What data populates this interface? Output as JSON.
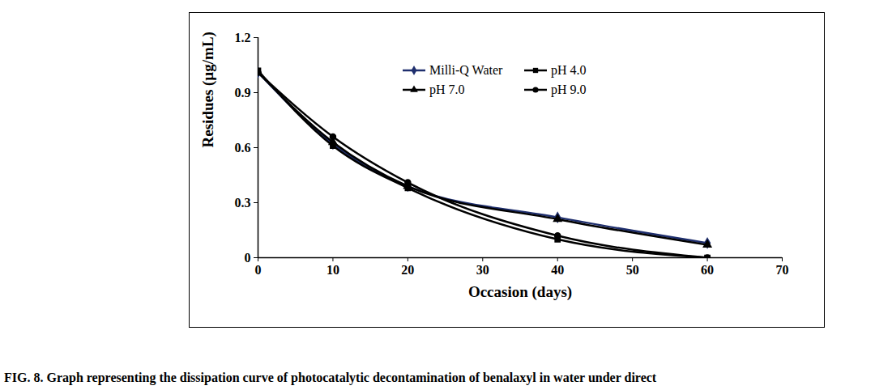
{
  "chart_data": {
    "type": "line",
    "title": "FIG. 8. Graph representing the dissipation curve of photocatalytic decontamination of benalaxyl in water under direct",
    "x_label": "Occasion (days)",
    "y_label": "Residues (µg/mL)",
    "x": [
      0,
      10,
      20,
      40,
      60
    ],
    "series": [
      {
        "name": "Milli-Q Water",
        "color": "#1f2f6e",
        "marker": "diamond",
        "values": [
          1.01,
          0.62,
          0.39,
          0.22,
          0.08
        ]
      },
      {
        "name": "pH 4.0",
        "color": "#000000",
        "marker": "square",
        "values": [
          1.02,
          0.61,
          0.38,
          0.1,
          0.0
        ]
      },
      {
        "name": "pH 7.0",
        "color": "#000000",
        "marker": "triangle",
        "values": [
          1.01,
          0.63,
          0.39,
          0.21,
          0.07
        ]
      },
      {
        "name": "pH 9.0",
        "color": "#000000",
        "marker": "circle",
        "values": [
          1.01,
          0.66,
          0.41,
          0.12,
          0.0
        ]
      }
    ],
    "xlim": [
      0,
      70
    ],
    "xticks": [
      0,
      10,
      20,
      30,
      40,
      50,
      60,
      70
    ],
    "ylim": [
      0,
      1.2
    ],
    "yticks": [
      0,
      0.3,
      0.6,
      0.9,
      1.2
    ],
    "grid": false,
    "legend": "upper right"
  }
}
